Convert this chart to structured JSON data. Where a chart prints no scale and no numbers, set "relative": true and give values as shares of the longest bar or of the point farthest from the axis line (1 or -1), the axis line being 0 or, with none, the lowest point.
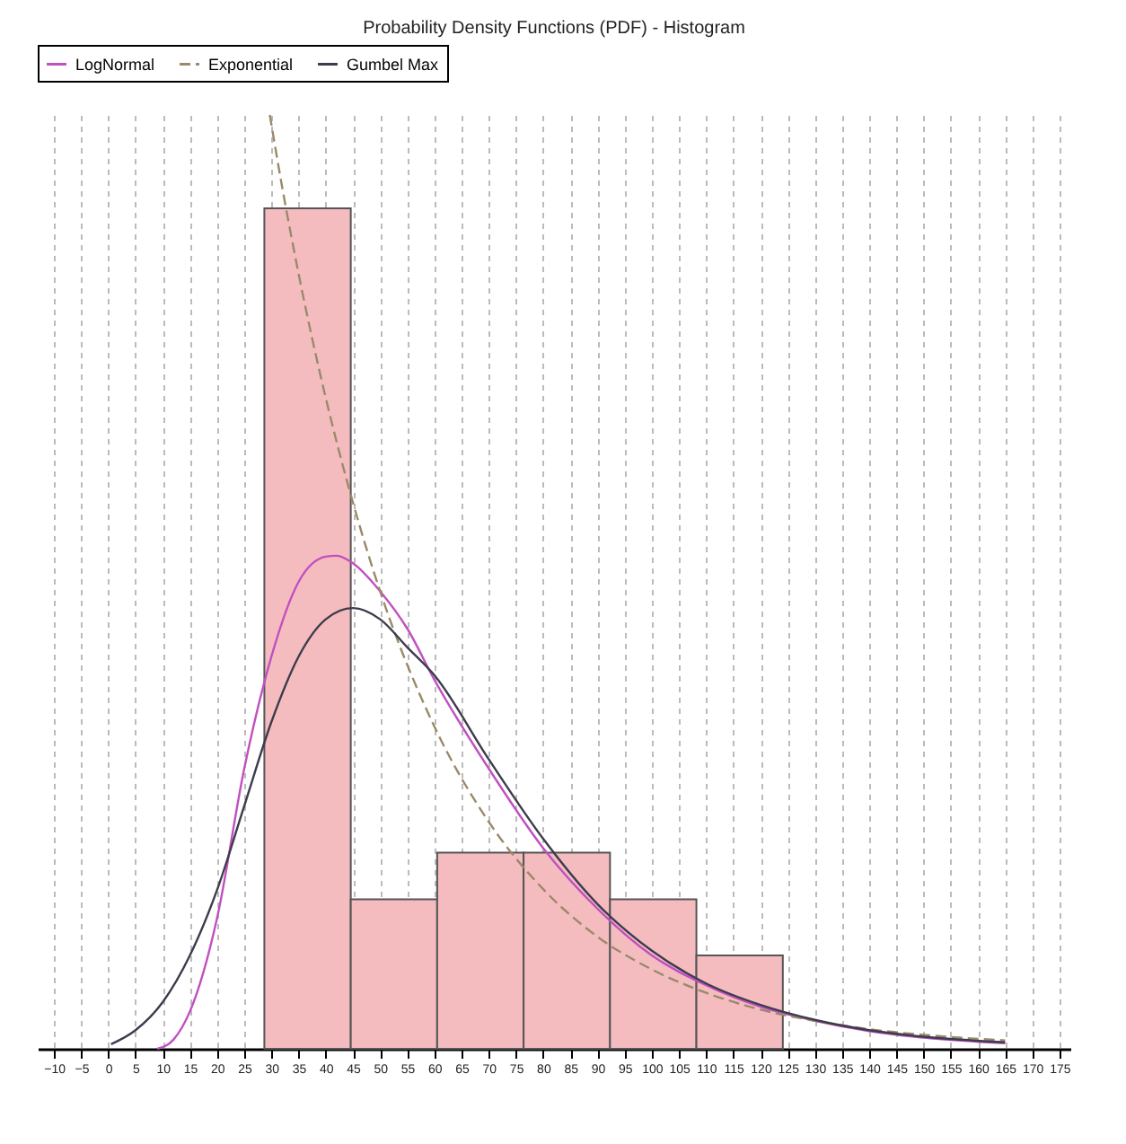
{
  "chart_data": {
    "type": "histogram",
    "title": "Probability Density Functions (PDF) - Histogram",
    "relative": true,
    "bins": [
      28.7,
      44.6,
      60.5,
      76.4,
      92.3,
      108.2,
      124.1
    ],
    "values": [
      0.9,
      0.16,
      0.21,
      0.21,
      0.16,
      0.1
    ],
    "color": "#f5bcc0",
    "series": [
      {
        "name": "LogNormal",
        "type": "line",
        "color": "#c050c0",
        "line_style": "solid",
        "x": [
          9,
          12,
          15,
          20,
          25,
          30,
          35,
          40,
          42,
          45,
          50,
          55,
          60,
          70,
          80,
          90,
          100,
          110,
          120,
          130,
          140,
          150,
          165
        ],
        "values": [
          0,
          0.01,
          0.04,
          0.14,
          0.3,
          0.42,
          0.5,
          0.527,
          0.528,
          0.52,
          0.49,
          0.45,
          0.395,
          0.3,
          0.215,
          0.15,
          0.1,
          0.068,
          0.045,
          0.03,
          0.019,
          0.012,
          0.006
        ]
      },
      {
        "name": "Exponential",
        "type": "line",
        "color": "#9a8a6a",
        "line_style": "dashed",
        "x": [
          29.7,
          32,
          35,
          40,
          45,
          50,
          60,
          70,
          80,
          90,
          100,
          110,
          120,
          130,
          140,
          150,
          165
        ],
        "values": [
          1,
          0.922,
          0.83,
          0.697,
          0.585,
          0.49,
          0.345,
          0.243,
          0.171,
          0.12,
          0.085,
          0.06,
          0.042,
          0.03,
          0.021,
          0.015,
          0.009
        ]
      },
      {
        "name": "Gumbel Max",
        "type": "line",
        "color": "#3c3c4c",
        "line_style": "solid",
        "x": [
          0.5,
          5,
          10,
          15,
          20,
          25,
          30,
          35,
          40,
          45,
          50,
          55,
          60,
          70,
          80,
          90,
          100,
          110,
          120,
          130,
          140,
          150,
          165
        ],
        "values": [
          0.005,
          0.02,
          0.05,
          0.1,
          0.17,
          0.26,
          0.35,
          0.42,
          0.46,
          0.472,
          0.46,
          0.43,
          0.4,
          0.31,
          0.225,
          0.155,
          0.105,
          0.07,
          0.047,
          0.031,
          0.02,
          0.013,
          0.007
        ]
      }
    ],
    "xlim": [
      -13,
      177
    ],
    "xticks": [
      -10,
      -5,
      0,
      5,
      10,
      15,
      20,
      25,
      30,
      35,
      40,
      45,
      50,
      55,
      60,
      65,
      70,
      75,
      80,
      85,
      90,
      95,
      100,
      105,
      110,
      115,
      120,
      125,
      130,
      135,
      140,
      145,
      150,
      155,
      160,
      165,
      170,
      175
    ],
    "grid": "x",
    "legend": "top",
    "tick_labels": "x"
  }
}
